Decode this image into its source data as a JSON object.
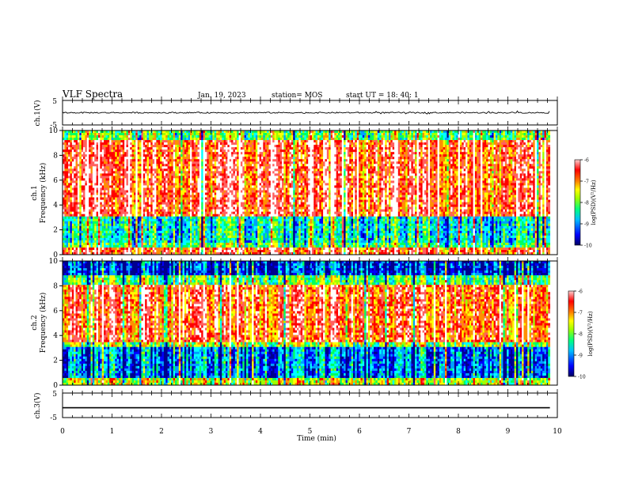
{
  "header": {
    "title": "VLF Spectra",
    "date": "Jan. 19, 2023",
    "station": "station= MOS",
    "start_ut": "start  UT =   18: 40: 1"
  },
  "chart_data": [
    {
      "type": "line",
      "panel": "ch1-waveform",
      "ylabel": "ch.1(V)",
      "ylim": [
        -5,
        5
      ],
      "yticks": [
        5,
        -5
      ],
      "series": [
        {
          "values_note": "flat trace near 0 V",
          "level": 0
        }
      ]
    },
    {
      "type": "heatmap",
      "panel": "ch1-spectrogram",
      "ylabel_line1": "ch.1",
      "ylabel_line2": "Frequency  (kHz)",
      "ylim": [
        0,
        10
      ],
      "yticks": [
        0,
        2,
        4,
        6,
        8,
        10
      ],
      "x_extent_min": 9.85,
      "colorbar": {
        "label": "log(PSD)(V²/Hz)",
        "range": [
          -10,
          -6
        ],
        "ticks": [
          -6,
          -7,
          -8,
          -9,
          -10
        ]
      },
      "bands_khz": [
        {
          "from": 0,
          "to": 0.5,
          "level": "high"
        },
        {
          "from": 0.5,
          "to": 3,
          "level": "low"
        },
        {
          "from": 3,
          "to": 9.2,
          "level": "high"
        },
        {
          "from": 9.2,
          "to": 10,
          "level": "medium"
        }
      ]
    },
    {
      "type": "heatmap",
      "panel": "ch2-spectrogram",
      "ylabel_line1": "ch.2",
      "ylabel_line2": "Frequency  (kHz)",
      "ylim": [
        0,
        10
      ],
      "yticks": [
        0,
        2,
        4,
        6,
        8,
        10
      ],
      "x_extent_min": 9.85,
      "colorbar": {
        "label": "log(PSD)(V²/Hz)",
        "range": [
          -10,
          -6
        ],
        "ticks": [
          -6,
          -7,
          -8,
          -9,
          -10
        ]
      },
      "bands_khz": [
        {
          "from": 0,
          "to": 1,
          "level": "medium"
        },
        {
          "from": 1,
          "to": 3,
          "level": "low"
        },
        {
          "from": 3,
          "to": 8,
          "level": "high"
        },
        {
          "from": 8,
          "to": 10,
          "level": "low"
        }
      ]
    },
    {
      "type": "line",
      "panel": "ch3-waveform",
      "ylabel": "ch.3(V)",
      "ylim": [
        -5,
        5
      ],
      "yticks": [
        5,
        -5
      ],
      "series": [
        {
          "values_note": "flat line",
          "level": -1
        }
      ]
    }
  ],
  "x_axis": {
    "label": "Time  (min)",
    "range": [
      0,
      10
    ],
    "ticks": [
      0,
      1,
      2,
      3,
      4,
      5,
      6,
      7,
      8,
      9,
      10
    ]
  },
  "colors": {
    "colormap": [
      "#00008f",
      "#0000ff",
      "#00a0ff",
      "#00ffff",
      "#00ff60",
      "#a0ff00",
      "#ffff00",
      "#ff9000",
      "#ff0000",
      "#ff6060",
      "#ffffff"
    ]
  }
}
